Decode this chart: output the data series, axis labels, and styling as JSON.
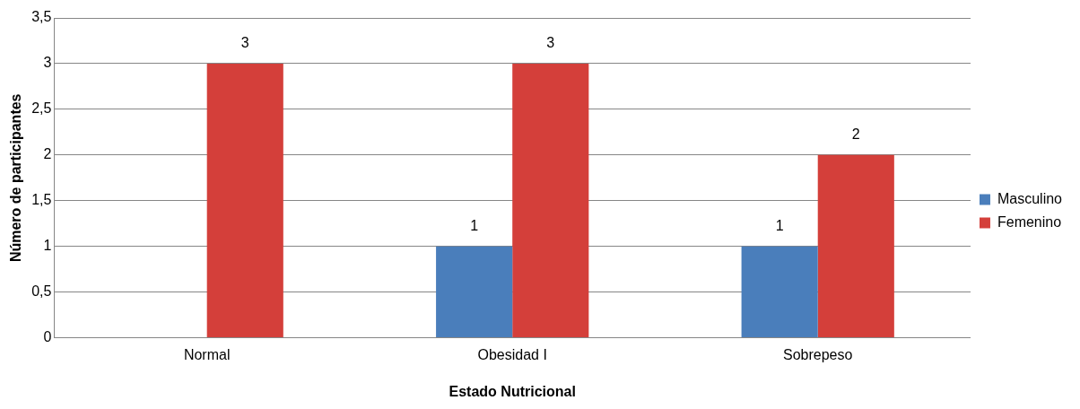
{
  "chart_data": {
    "type": "bar",
    "xlabel": "Estado Nutricional",
    "ylabel": "Número de participantes",
    "categories": [
      "Normal",
      "Obesidad I",
      "Sobrepeso"
    ],
    "series": [
      {
        "name": "Masculino",
        "color": "#4a7ebb",
        "values": [
          null,
          1,
          1
        ],
        "value_labels": [
          null,
          "1",
          "1"
        ]
      },
      {
        "name": "Femenino",
        "color": "#d43f3a",
        "values": [
          3,
          3,
          2
        ],
        "value_labels": [
          "3",
          "3",
          "2"
        ]
      }
    ],
    "ylim": [
      0,
      3.5
    ],
    "yticks": [
      0,
      {
        "value": 0.5,
        "label": "0,5"
      },
      1,
      {
        "value": 1.5,
        "label": "1,5"
      },
      2,
      {
        "value": 2.5,
        "label": "2,5"
      },
      3,
      {
        "value": 3.5,
        "label": "3,5"
      }
    ],
    "grid": "y",
    "legend": "right"
  }
}
